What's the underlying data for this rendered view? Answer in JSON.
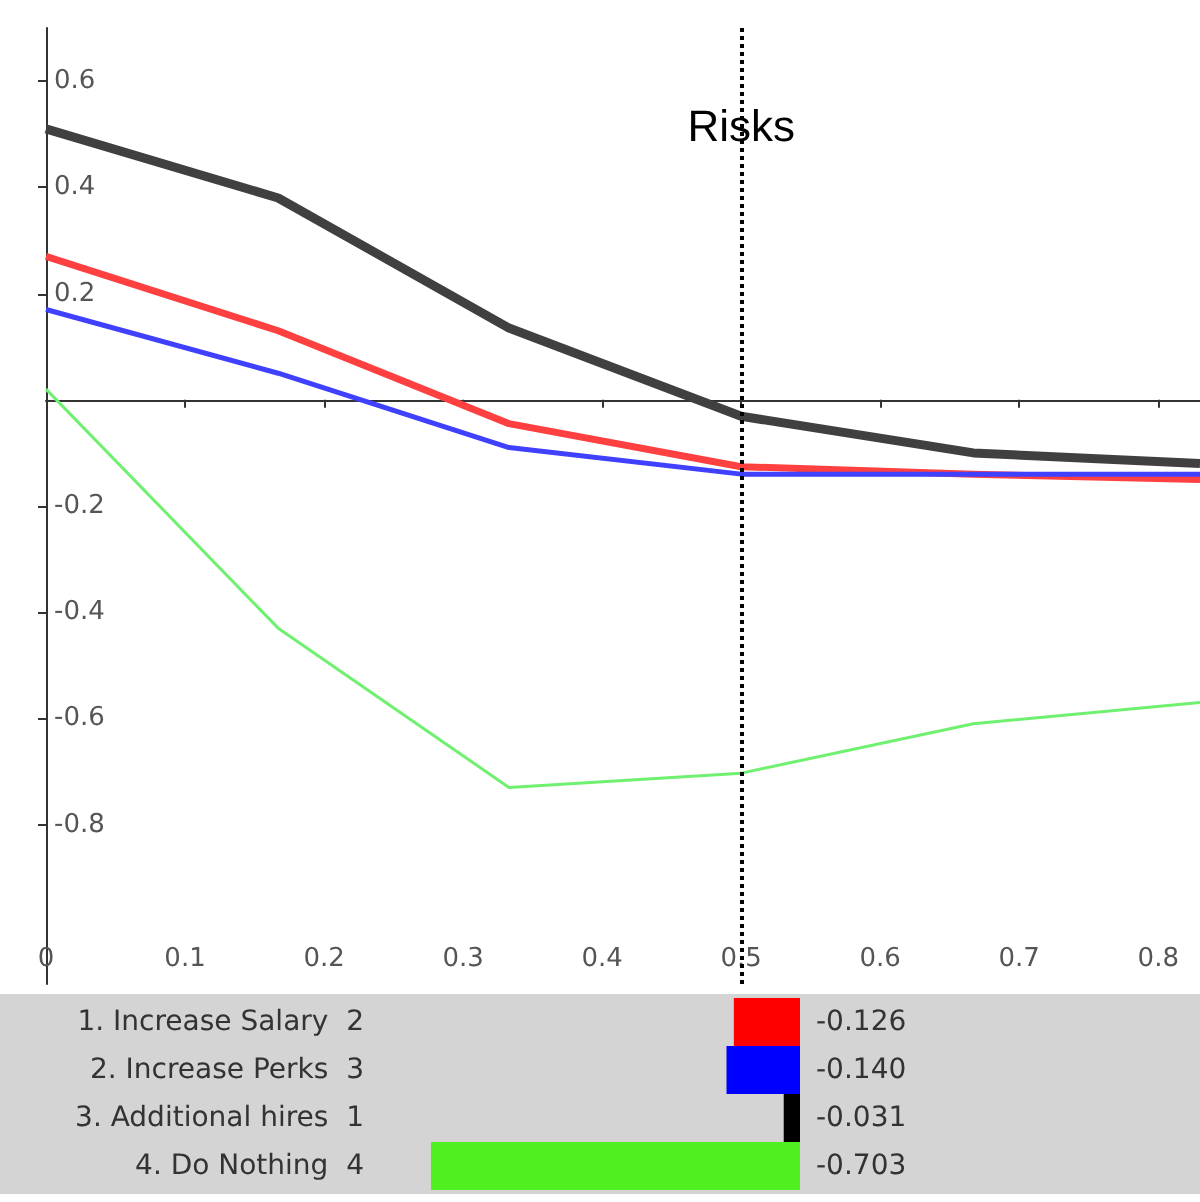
{
  "chart_data": [
    {
      "type": "line",
      "x": [
        0,
        0.167,
        0.333,
        0.5,
        0.667,
        0.83
      ],
      "xlim": [
        0,
        0.83
      ],
      "ylim": [
        -1.1,
        0.7
      ],
      "xticks": [
        0,
        0.1,
        0.2,
        0.3,
        0.4,
        0.5,
        0.6,
        0.7,
        0.8
      ],
      "yticks": [
        -0.8,
        -0.6,
        -0.4,
        -0.2,
        0.2,
        0.4,
        0.6
      ],
      "series": [
        {
          "color": "#404040",
          "values": [
            0.51,
            0.38,
            0.135,
            -0.031,
            -0.1,
            -0.12
          ]
        },
        {
          "color": "#ff4040",
          "values": [
            0.27,
            0.13,
            -0.045,
            -0.126,
            -0.14,
            -0.15
          ]
        },
        {
          "color": "#4040ff",
          "values": [
            0.17,
            0.05,
            -0.09,
            -0.14,
            -0.14,
            -0.14
          ]
        },
        {
          "color": "#70f070",
          "values": [
            0.02,
            -0.43,
            -0.73,
            -0.703,
            -0.61,
            -0.57
          ]
        }
      ],
      "ref_lines": [
        {
          "axis": "x",
          "value": 0.5,
          "label": "Risks",
          "color": "#000000",
          "line_style": "dotted"
        }
      ],
      "grid": false,
      "marker": "none",
      "line_style": "solid"
    },
    {
      "type": "bar",
      "orientation": "horizontal",
      "categories": [
        "1. Increase Salary  2",
        "2. Increase Perks  3",
        "3. Additional hires  1",
        "4. Do Nothing  4"
      ],
      "values": [
        -0.126,
        -0.14,
        -0.031,
        -0.703
      ],
      "colors": [
        "#ff0000",
        "#0000ff",
        "#000000",
        "#50f020"
      ],
      "value_labels": [
        "-0.126",
        "-0.140",
        "-0.031",
        "-0.703"
      ]
    }
  ]
}
